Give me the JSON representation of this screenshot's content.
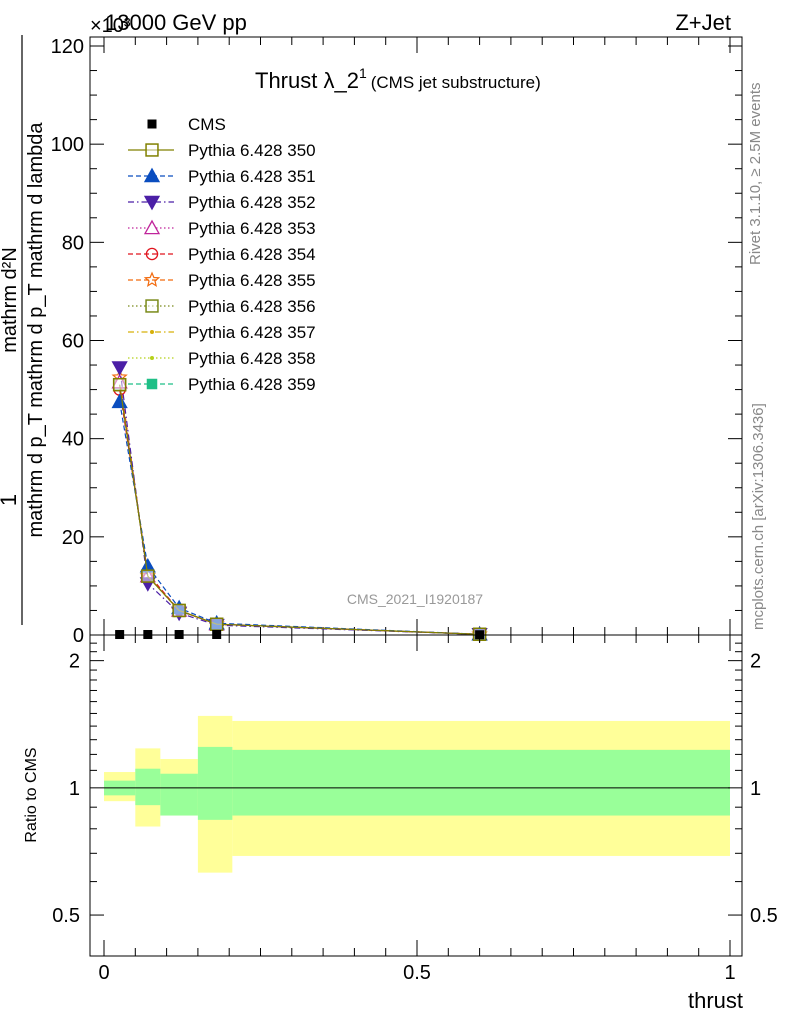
{
  "header": {
    "top_left": "13000 GeV pp",
    "top_right": "Z+Jet",
    "exponent_label": "×10³"
  },
  "side_text": {
    "rivet": "Rivet 3.1.10, ≥ 2.5M events",
    "mcplots": "mcplots.cern.ch [arXiv:1306.3436]"
  },
  "watermark": "CMS_2021_I1920187",
  "chart_data": [
    {
      "type": "line",
      "title_main": "Thrust λ_2",
      "title_sup": "1",
      "title_sub": "(CMS jet substructure)",
      "ylabel_numer": "mathrm d²N",
      "ylabel_denom": "mathrm d p_T mathrm d p_T mathrm d lambda",
      "ylabel_full": "1 / (mathrm d N / mathrm d p_T) · mathrm d²N / (mathrm d p_T mathrm d lambda)",
      "y_tick_scale": "×10³",
      "xlim": [
        0,
        1
      ],
      "ylim": [
        0,
        120
      ],
      "x_ticks": [
        0,
        0.5,
        1
      ],
      "y_ticks": [
        0,
        20,
        40,
        60,
        80,
        100,
        120
      ],
      "y_tick_labels": [
        "0",
        "20",
        "40",
        "60",
        "80",
        "100",
        "120"
      ],
      "legend_position": "top-left",
      "grid": false,
      "data_x": [
        0.025,
        0.07,
        0.12,
        0.18,
        0.6
      ],
      "series": [
        {
          "name": "CMS",
          "color": "#000000",
          "marker": "filled-square",
          "line": "none",
          "values": [
            0.1,
            0.1,
            0.1,
            0.1,
            0.05
          ]
        },
        {
          "name": "Pythia 6.428 350",
          "color": "#808000",
          "marker": "open-square",
          "line": "solid",
          "values": [
            51,
            12,
            5,
            2.2,
            0.15
          ]
        },
        {
          "name": "Pythia 6.428 351",
          "color": "#0a4dbf",
          "marker": "filled-triangle-up",
          "line": "dashed",
          "values": [
            47.5,
            14,
            5.5,
            2.4,
            0.15
          ]
        },
        {
          "name": "Pythia 6.428 352",
          "color": "#4b1fa6",
          "marker": "filled-triangle-down",
          "line": "dashdot",
          "values": [
            54.5,
            10.5,
            4.5,
            2.0,
            0.15
          ]
        },
        {
          "name": "Pythia 6.428 353",
          "color": "#c0249b",
          "marker": "open-triangle-up",
          "line": "dotted",
          "values": [
            51.5,
            12,
            5,
            2.2,
            0.15
          ]
        },
        {
          "name": "Pythia 6.428 354",
          "color": "#e0141e",
          "marker": "open-circle",
          "line": "dashed",
          "values": [
            50,
            12.5,
            5,
            2.2,
            0.15
          ]
        },
        {
          "name": "Pythia 6.428 355",
          "color": "#f26b0f",
          "marker": "open-star",
          "line": "dashed",
          "values": [
            52.5,
            12,
            5,
            2.2,
            0.15
          ]
        },
        {
          "name": "Pythia 6.428 356",
          "color": "#7a8a1a",
          "marker": "open-square",
          "line": "dotted",
          "values": [
            51,
            12,
            5,
            2.2,
            0.15
          ]
        },
        {
          "name": "Pythia 6.428 357",
          "color": "#d6b00a",
          "marker": "small-dot",
          "line": "dashdot",
          "values": [
            51,
            12,
            5,
            2.2,
            0.15
          ]
        },
        {
          "name": "Pythia 6.428 358",
          "color": "#b5d11a",
          "marker": "small-dot",
          "line": "dotted",
          "values": [
            51,
            12,
            5,
            2.2,
            0.15
          ]
        },
        {
          "name": "Pythia 6.428 359",
          "color": "#1fbf86",
          "marker": "filled-square",
          "line": "dashed",
          "values": [
            51,
            12,
            5,
            2.2,
            0.15
          ]
        }
      ]
    },
    {
      "type": "area",
      "ylabel": "Ratio to CMS",
      "xlabel": "thrust",
      "xlim": [
        0,
        1
      ],
      "ylim": [
        0.4,
        2.3
      ],
      "log_y": true,
      "x_ticks": [
        0,
        0.5,
        1
      ],
      "x_tick_labels": [
        "0",
        "0.5",
        "1"
      ],
      "y_ticks": [
        0.5,
        1,
        2
      ],
      "y_tick_labels": [
        "0.5",
        "1",
        "2"
      ],
      "reference_line": 1,
      "bins": [
        {
          "x_lo": 0.0,
          "x_hi": 0.05,
          "inner": [
            0.96,
            1.04
          ],
          "outer": [
            0.93,
            1.09
          ]
        },
        {
          "x_lo": 0.05,
          "x_hi": 0.09,
          "inner": [
            0.91,
            1.11
          ],
          "outer": [
            0.81,
            1.24
          ]
        },
        {
          "x_lo": 0.09,
          "x_hi": 0.15,
          "inner": [
            0.86,
            1.08
          ],
          "outer": [
            0.86,
            1.17
          ]
        },
        {
          "x_lo": 0.15,
          "x_hi": 0.205,
          "inner": [
            0.84,
            1.25
          ],
          "outer": [
            0.63,
            1.48
          ]
        },
        {
          "x_lo": 0.205,
          "x_hi": 1.0,
          "inner": [
            0.86,
            1.23
          ],
          "outer": [
            0.69,
            1.44
          ]
        }
      ],
      "band_colors": {
        "inner": "#99ff99",
        "outer": "#ffff99"
      }
    }
  ]
}
